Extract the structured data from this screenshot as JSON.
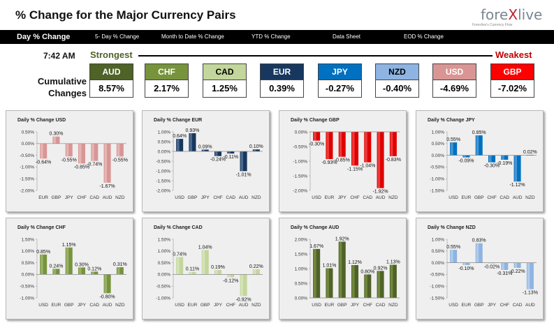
{
  "header": {
    "title": "% Change for the Major Currency Pairs",
    "logo_pre": "fore",
    "logo_x": "X",
    "logo_post": "live",
    "tagline": "Forexlive's Currency Flow"
  },
  "nav": {
    "items": [
      {
        "label": "Day % Change",
        "active": true
      },
      {
        "label": "5- Day % Change",
        "active": false
      },
      {
        "label": "Month to Date % Change",
        "active": false
      },
      {
        "label": "YTD % Change",
        "active": false
      },
      {
        "label": "Data Sheet",
        "active": false
      },
      {
        "label": "EOD % Change",
        "active": false
      }
    ]
  },
  "strength": {
    "time": "7:42 AM",
    "strongest": "Strongest",
    "weakest": "Weakest",
    "row_label_line1": "Cumulative",
    "row_label_line2": "Changes",
    "currencies": [
      {
        "code": "AUD",
        "value": "8.57%",
        "color": "#4f6228",
        "text": "#ffffff"
      },
      {
        "code": "CHF",
        "value": "2.17%",
        "color": "#77933c",
        "text": "#ffffff"
      },
      {
        "code": "CAD",
        "value": "1.25%",
        "color": "#c3d69b",
        "text": "#000000"
      },
      {
        "code": "EUR",
        "value": "0.39%",
        "color": "#17375e",
        "text": "#ffffff"
      },
      {
        "code": "JPY",
        "value": "-0.27%",
        "color": "#0070c0",
        "text": "#ffffff"
      },
      {
        "code": "NZD",
        "value": "-0.40%",
        "color": "#8db4e2",
        "text": "#000000"
      },
      {
        "code": "USD",
        "value": "-4.69%",
        "color": "#d99594",
        "text": "#ffffff"
      },
      {
        "code": "GBP",
        "value": "-7.02%",
        "color": "#ff0000",
        "text": "#ffffff"
      }
    ]
  },
  "chart_data": [
    {
      "type": "bar",
      "title": "Daily % Change USD",
      "categories": [
        "EUR",
        "GBP",
        "JPY",
        "CHF",
        "CAD",
        "AUD",
        "NZD"
      ],
      "values": [
        -0.64,
        0.3,
        -0.55,
        -0.85,
        -0.74,
        -1.67,
        -0.55
      ],
      "labels": [
        "-0.64%",
        "0.30%",
        "-0.55%",
        "-0.85%",
        "-0.74%",
        "-1.67%",
        "-0.55%"
      ],
      "ylim": [
        -2.0,
        0.5
      ],
      "ticks": [
        "0.50%",
        "0.00%",
        "-0.50%",
        "-1.00%",
        "-1.50%",
        "-2.00%"
      ],
      "tick_values": [
        0.5,
        0,
        -0.5,
        -1.0,
        -1.5,
        -2.0
      ],
      "color": "#d99594",
      "color_light": "#f2dcdb"
    },
    {
      "type": "bar",
      "title": "Daily % Change EUR",
      "categories": [
        "USD",
        "GBP",
        "JPY",
        "CHF",
        "CAD",
        "AUD",
        "NZD"
      ],
      "values": [
        0.64,
        0.93,
        0.09,
        -0.24,
        -0.11,
        -1.01,
        0.1
      ],
      "labels": [
        "0.64%",
        "0.93%",
        "0.09%",
        "-0.24%",
        "-0.11%",
        "-1.01%",
        "0.10%"
      ],
      "ylim": [
        -2.0,
        1.0
      ],
      "ticks": [
        "1.00%",
        "0.50%",
        "0.00%",
        "-0.50%",
        "-1.00%",
        "-1.50%",
        "-2.00%"
      ],
      "tick_values": [
        1.0,
        0.5,
        0,
        -0.5,
        -1.0,
        -1.5,
        -2.0
      ],
      "color": "#17375e",
      "color_light": "#8ea9c8"
    },
    {
      "type": "bar",
      "title": "Daily % Change GBP",
      "categories": [
        "USD",
        "EUR",
        "JPY",
        "CHF",
        "CAD",
        "AUD",
        "NZD"
      ],
      "values": [
        -0.3,
        -0.93,
        -0.85,
        -1.15,
        -1.04,
        -1.92,
        -0.83
      ],
      "labels": [
        "-0.30%",
        "-0.93%",
        "-0.85%",
        "-1.15%",
        "-1.04%",
        "-1.92%",
        "-0.83%"
      ],
      "ylim": [
        -2.0,
        0.0
      ],
      "ticks": [
        "0.00%",
        "-0.50%",
        "-1.00%",
        "-1.50%",
        "-2.00%"
      ],
      "tick_values": [
        0,
        -0.5,
        -1.0,
        -1.5,
        -2.0
      ],
      "color": "#e00000",
      "color_light": "#ff8080"
    },
    {
      "type": "bar",
      "title": "Daily % Change JPY",
      "categories": [
        "USD",
        "EUR",
        "GBP",
        "CHF",
        "CAD",
        "AUD",
        "NZD"
      ],
      "values": [
        0.55,
        -0.09,
        0.85,
        -0.3,
        -0.19,
        -1.12,
        0.02
      ],
      "labels": [
        "0.55%",
        "-0.09%",
        "0.85%",
        "-0.30%",
        "-0.19%",
        "-1.12%",
        "0.02%"
      ],
      "ylim": [
        -1.5,
        1.0
      ],
      "ticks": [
        "1.00%",
        "0.50%",
        "0.00%",
        "-0.50%",
        "-1.00%",
        "-1.50%"
      ],
      "tick_values": [
        1.0,
        0.5,
        0,
        -0.5,
        -1.0,
        -1.5
      ],
      "color": "#0070c0",
      "color_light": "#9cc3e6"
    },
    {
      "type": "bar",
      "title": "Daily % Change CHF",
      "categories": [
        "USD",
        "EUR",
        "GBP",
        "JPY",
        "CAD",
        "AUD",
        "NZD"
      ],
      "values": [
        0.85,
        0.24,
        1.15,
        0.3,
        0.12,
        -0.8,
        0.31
      ],
      "labels": [
        "0.85%",
        "0.24%",
        "1.15%",
        "0.30%",
        "0.12%",
        "-0.80%",
        "0.31%"
      ],
      "ylim": [
        -1.0,
        1.5
      ],
      "ticks": [
        "1.50%",
        "1.00%",
        "0.50%",
        "0.00%",
        "-0.50%",
        "-1.00%"
      ],
      "tick_values": [
        1.5,
        1.0,
        0.5,
        0,
        -0.5,
        -1.0
      ],
      "color": "#77933c",
      "color_light": "#c3d69b"
    },
    {
      "type": "bar",
      "title": "Daily % Change CAD",
      "categories": [
        "USD",
        "EUR",
        "GBP",
        "JPY",
        "CHF",
        "AUD",
        "NZD"
      ],
      "values": [
        0.74,
        0.11,
        1.04,
        0.19,
        -0.12,
        -0.92,
        0.22
      ],
      "labels": [
        "0.74%",
        "0.11%",
        "1.04%",
        "0.19%",
        "-0.12%",
        "-0.92%",
        "0.22%"
      ],
      "ylim": [
        -1.0,
        1.5
      ],
      "ticks": [
        "1.50%",
        "1.00%",
        "0.50%",
        "0.00%",
        "-0.50%",
        "-1.00%"
      ],
      "tick_values": [
        1.5,
        1.0,
        0.5,
        0,
        -0.5,
        -1.0
      ],
      "color": "#c3d69b",
      "color_light": "#ebf1de"
    },
    {
      "type": "bar",
      "title": "Daily % Change AUD",
      "categories": [
        "USD",
        "EUR",
        "GBP",
        "JPY",
        "CHF",
        "CAD",
        "NZD"
      ],
      "values": [
        1.67,
        1.01,
        1.92,
        1.12,
        0.8,
        0.92,
        1.13
      ],
      "labels": [
        "1.67%",
        "1.01%",
        "1.92%",
        "1.12%",
        "0.80%",
        "0.92%",
        "1.13%"
      ],
      "ylim": [
        0.0,
        2.0
      ],
      "ticks": [
        "2.00%",
        "1.50%",
        "1.00%",
        "0.50%",
        "0.00%"
      ],
      "tick_values": [
        2.0,
        1.5,
        1.0,
        0.5,
        0
      ],
      "color": "#4f6228",
      "color_light": "#9bbb59"
    },
    {
      "type": "bar",
      "title": "Daily % Change NZD",
      "categories": [
        "USD",
        "EUR",
        "GBP",
        "JPY",
        "CHF",
        "CAD",
        "AUD"
      ],
      "values": [
        0.55,
        -0.1,
        0.83,
        -0.02,
        -0.31,
        -0.22,
        -1.13
      ],
      "labels": [
        "0.55%",
        "-0.10%",
        "0.83%",
        "-0.02%",
        "-0.31%",
        "-0.22%",
        "-1.13%"
      ],
      "ylim": [
        -1.5,
        1.0
      ],
      "ticks": [
        "1.00%",
        "0.50%",
        "0.00%",
        "-0.50%",
        "-1.00%",
        "-1.50%"
      ],
      "tick_values": [
        1.0,
        0.5,
        0,
        -0.5,
        -1.0,
        -1.5
      ],
      "color": "#8db4e2",
      "color_light": "#dbe5f1"
    }
  ]
}
